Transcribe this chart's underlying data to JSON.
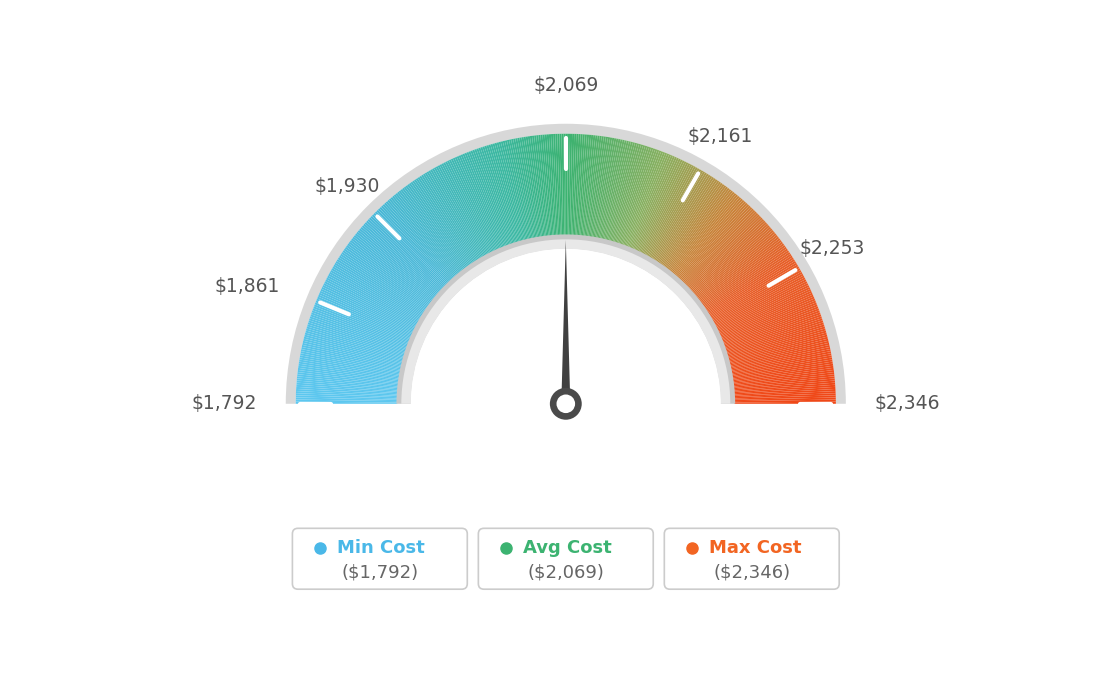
{
  "min_val": 1792,
  "avg_val": 2069,
  "max_val": 2346,
  "tick_labels": [
    "$1,792",
    "$1,861",
    "$1,930",
    "$2,069",
    "$2,161",
    "$2,253",
    "$2,346"
  ],
  "tick_values": [
    1792,
    1861,
    1930,
    2069,
    2161,
    2253,
    2346
  ],
  "legend": [
    {
      "label": "Min Cost",
      "value": "($1,792)",
      "color": "#4ab8e8"
    },
    {
      "label": "Avg Cost",
      "value": "($2,069)",
      "color": "#3cb371"
    },
    {
      "label": "Max Cost",
      "value": "($2,346)",
      "color": "#f26522"
    }
  ],
  "needle_value": 2069,
  "background_color": "#ffffff",
  "color_stops": [
    [
      0.0,
      "#5ec8f0"
    ],
    [
      0.25,
      "#4ab8d8"
    ],
    [
      0.42,
      "#3cb8a0"
    ],
    [
      0.5,
      "#3cb371"
    ],
    [
      0.62,
      "#8ab060"
    ],
    [
      0.72,
      "#c8843a"
    ],
    [
      0.82,
      "#e85e28"
    ],
    [
      1.0,
      "#f04818"
    ]
  ]
}
